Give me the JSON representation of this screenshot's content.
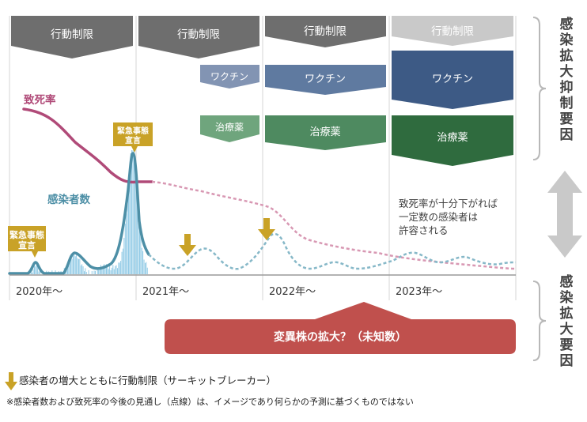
{
  "periods": {
    "p2020": {
      "year": "2020年〜"
    },
    "p2021": {
      "year": "2021年〜"
    },
    "p2022": {
      "year": "2022年〜"
    },
    "p2023": {
      "year": "2023年〜"
    }
  },
  "measures": {
    "restriction": "行動制限",
    "vaccine": "ワクチン",
    "treatment": "治療薬"
  },
  "lines": {
    "death_rate": "致死率",
    "infected": "感染者数"
  },
  "callouts": {
    "emergency": [
      "緊急事態",
      "宣言"
    ],
    "acceptable": [
      "致死率が十分下がれば",
      "一定数の感染者は",
      "許容される"
    ]
  },
  "side_labels": {
    "suppression": "感染拡大抑制要因",
    "expansion": "感染拡大要因"
  },
  "variant": "変異株の拡大？（未知数）",
  "legend": {
    "arrow_text": "感染者の増大とともに行動制限（サーキットブレーカー）",
    "note": "※感染者数および致死率の今後の見通し（点線）は、イメージであり何らかの予測に基づくものではない"
  },
  "colors": {
    "restriction_dark": "#6e6e6e",
    "restriction_light": "#c9c9c9",
    "vaccine_light": "#8294b3",
    "vaccine_mid": "#5f7aa0",
    "vaccine_dark": "#3d5a85",
    "treatment_light": "#6fa57d",
    "treatment_mid": "#4e8a60",
    "treatment_dark": "#2f6b3e",
    "death_rate": "#b04a78",
    "infected": "#4d8fa6",
    "infected_bars": "#86c5e3",
    "circuit_arrow": "#c9a227",
    "variant": "#c0504d"
  }
}
